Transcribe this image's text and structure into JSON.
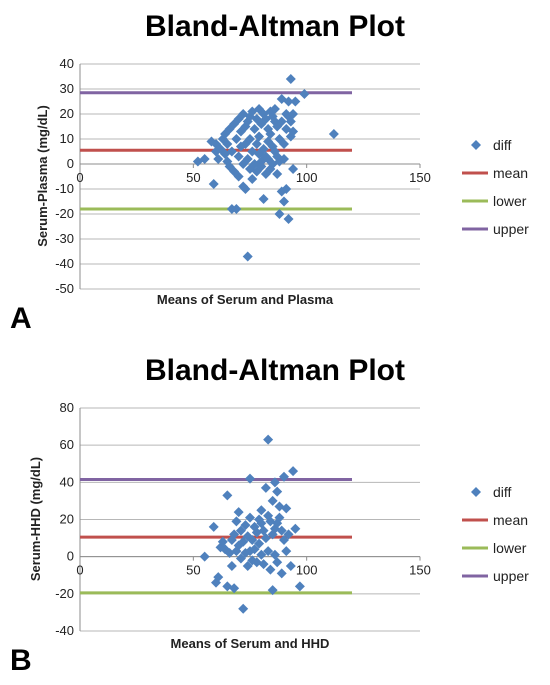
{
  "chart_data": [
    {
      "panel": "A",
      "type": "scatter",
      "title": "Bland-Altman Plot",
      "xlabel": "Means of Serum and Plasma",
      "ylabel": "Serum-Plasma (mg/dL)",
      "xlim": [
        0,
        150
      ],
      "ylim": [
        -50,
        40
      ],
      "xticks": [
        0,
        50,
        100,
        150
      ],
      "yticks": [
        -50,
        -40,
        -30,
        -20,
        -10,
        0,
        10,
        20,
        30,
        40
      ],
      "grid": "horizontal",
      "legend_position": "right",
      "series": [
        {
          "name": "diff",
          "color": "#4f81bd",
          "marker": "diamond",
          "points": [
            [
              52,
              1
            ],
            [
              55,
              2
            ],
            [
              58,
              9
            ],
            [
              59,
              -8
            ],
            [
              60,
              5
            ],
            [
              60,
              8
            ],
            [
              61,
              2
            ],
            [
              62,
              6
            ],
            [
              63,
              10
            ],
            [
              64,
              4
            ],
            [
              64,
              12
            ],
            [
              65,
              8
            ],
            [
              65,
              1
            ],
            [
              66,
              14
            ],
            [
              66,
              -1
            ],
            [
              67,
              -18
            ],
            [
              67,
              5
            ],
            [
              68,
              16
            ],
            [
              68,
              -3
            ],
            [
              69,
              -18
            ],
            [
              69,
              10
            ],
            [
              70,
              18
            ],
            [
              70,
              3
            ],
            [
              70,
              -5
            ],
            [
              71,
              13
            ],
            [
              71,
              7
            ],
            [
              72,
              20
            ],
            [
              72,
              -9
            ],
            [
              72,
              0
            ],
            [
              73,
              15
            ],
            [
              73,
              -10
            ],
            [
              73,
              8
            ],
            [
              74,
              -37
            ],
            [
              74,
              17
            ],
            [
              74,
              2
            ],
            [
              75,
              19
            ],
            [
              75,
              -2
            ],
            [
              75,
              10
            ],
            [
              76,
              21
            ],
            [
              76,
              5
            ],
            [
              76,
              -6
            ],
            [
              77,
              14
            ],
            [
              77,
              0
            ],
            [
              78,
              18
            ],
            [
              78,
              8
            ],
            [
              78,
              -3
            ],
            [
              79,
              22
            ],
            [
              79,
              11
            ],
            [
              79,
              4
            ],
            [
              80,
              16
            ],
            [
              80,
              1
            ],
            [
              80,
              -1
            ],
            [
              81,
              20
            ],
            [
              81,
              6
            ],
            [
              81,
              -14
            ],
            [
              82,
              18
            ],
            [
              82,
              3
            ],
            [
              82,
              -4
            ],
            [
              83,
              14
            ],
            [
              83,
              9
            ],
            [
              83,
              2
            ],
            [
              84,
              21
            ],
            [
              84,
              12
            ],
            [
              84,
              -2
            ],
            [
              85,
              19
            ],
            [
              85,
              7
            ],
            [
              85,
              0
            ],
            [
              86,
              22
            ],
            [
              86,
              17
            ],
            [
              86,
              5
            ],
            [
              87,
              15
            ],
            [
              87,
              -4
            ],
            [
              87,
              3
            ],
            [
              88,
              -20
            ],
            [
              88,
              10
            ],
            [
              88,
              1
            ],
            [
              89,
              -11
            ],
            [
              89,
              26
            ],
            [
              89,
              17
            ],
            [
              90,
              -15
            ],
            [
              90,
              8
            ],
            [
              90,
              2
            ],
            [
              91,
              20
            ],
            [
              91,
              14
            ],
            [
              91,
              -10
            ],
            [
              92,
              25
            ],
            [
              92,
              -22
            ],
            [
              92,
              19
            ],
            [
              93,
              34
            ],
            [
              93,
              17
            ],
            [
              93,
              11
            ],
            [
              94,
              13
            ],
            [
              94,
              -2
            ],
            [
              94,
              20
            ],
            [
              95,
              25
            ],
            [
              99,
              28
            ],
            [
              112,
              12
            ]
          ]
        }
      ],
      "reference_lines": [
        {
          "name": "mean",
          "value": 5.5,
          "color": "#c0504d"
        },
        {
          "name": "lower",
          "value": -18,
          "color": "#9bbb59"
        },
        {
          "name": "upper",
          "value": 28.5,
          "color": "#8064a2"
        }
      ],
      "line_x_range": [
        0,
        120
      ]
    },
    {
      "panel": "B",
      "type": "scatter",
      "title": "Bland-Altman Plot",
      "xlabel": "Means of Serum and HHD",
      "ylabel": "Serum-HHD (mg/dL)",
      "xlim": [
        0,
        150
      ],
      "ylim": [
        -40,
        80
      ],
      "xticks": [
        0,
        50,
        100,
        150
      ],
      "yticks": [
        -40,
        -20,
        0,
        20,
        40,
        60,
        80
      ],
      "grid": "horizontal",
      "legend_position": "right",
      "series": [
        {
          "name": "diff",
          "color": "#4f81bd",
          "marker": "diamond",
          "points": [
            [
              55,
              0
            ],
            [
              59,
              16
            ],
            [
              60,
              -14
            ],
            [
              61,
              -11
            ],
            [
              62,
              5
            ],
            [
              63,
              8
            ],
            [
              64,
              4
            ],
            [
              65,
              33
            ],
            [
              65,
              -16
            ],
            [
              66,
              2
            ],
            [
              67,
              9
            ],
            [
              67,
              -5
            ],
            [
              68,
              -17
            ],
            [
              68,
              12
            ],
            [
              69,
              3
            ],
            [
              69,
              19
            ],
            [
              70,
              24
            ],
            [
              70,
              6
            ],
            [
              71,
              -1
            ],
            [
              71,
              14
            ],
            [
              72,
              -28
            ],
            [
              72,
              8
            ],
            [
              73,
              2
            ],
            [
              73,
              17
            ],
            [
              74,
              11
            ],
            [
              74,
              -5
            ],
            [
              75,
              21
            ],
            [
              75,
              42
            ],
            [
              75,
              3
            ],
            [
              76,
              9
            ],
            [
              76,
              -2
            ],
            [
              77,
              16
            ],
            [
              77,
              4
            ],
            [
              78,
              13
            ],
            [
              78,
              -3
            ],
            [
              79,
              20
            ],
            [
              79,
              7
            ],
            [
              80,
              18
            ],
            [
              80,
              1
            ],
            [
              80,
              25
            ],
            [
              81,
              14
            ],
            [
              81,
              -4
            ],
            [
              82,
              37
            ],
            [
              82,
              10
            ],
            [
              83,
              63
            ],
            [
              83,
              22
            ],
            [
              83,
              3
            ],
            [
              84,
              19
            ],
            [
              84,
              -7
            ],
            [
              85,
              30
            ],
            [
              85,
              12
            ],
            [
              85,
              -18
            ],
            [
              86,
              40
            ],
            [
              86,
              15
            ],
            [
              86,
              1
            ],
            [
              87,
              35
            ],
            [
              87,
              18
            ],
            [
              87,
              -3
            ],
            [
              88,
              27
            ],
            [
              88,
              21
            ],
            [
              89,
              14
            ],
            [
              89,
              -9
            ],
            [
              90,
              43
            ],
            [
              90,
              9
            ],
            [
              91,
              26
            ],
            [
              91,
              3
            ],
            [
              92,
              12
            ],
            [
              93,
              -5
            ],
            [
              94,
              46
            ],
            [
              95,
              15
            ],
            [
              97,
              -16
            ]
          ]
        }
      ],
      "reference_lines": [
        {
          "name": "mean",
          "value": 10.5,
          "color": "#c0504d"
        },
        {
          "name": "lower",
          "value": -19.5,
          "color": "#9bbb59"
        },
        {
          "name": "upper",
          "value": 41.5,
          "color": "#8064a2"
        }
      ],
      "line_x_range": [
        0,
        120
      ]
    }
  ],
  "legend_labels": [
    "diff",
    "mean",
    "lower",
    "upper"
  ]
}
